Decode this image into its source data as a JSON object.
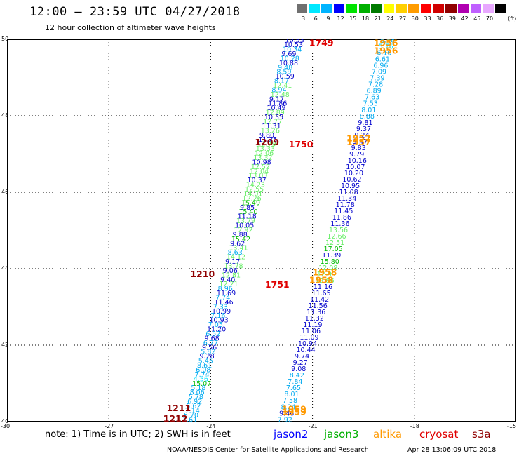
{
  "header": {
    "title": "12:00 – 23:59 UTC 04/27/2018",
    "subtitle": "12 hour collection of altimeter wave heights"
  },
  "color_scale": {
    "unit": "(ft)",
    "bins": [
      {
        "label": "3",
        "color": "#707070"
      },
      {
        "label": "6",
        "color": "#00e8ff"
      },
      {
        "label": "9",
        "color": "#00b4ff"
      },
      {
        "label": "12",
        "color": "#0000ff"
      },
      {
        "label": "15",
        "color": "#00e400"
      },
      {
        "label": "18",
        "color": "#00b000"
      },
      {
        "label": "21",
        "color": "#007a00"
      },
      {
        "label": "24",
        "color": "#ffff00"
      },
      {
        "label": "27",
        "color": "#ffd000"
      },
      {
        "label": "30",
        "color": "#ff9c00"
      },
      {
        "label": "33",
        "color": "#ff0000"
      },
      {
        "label": "36",
        "color": "#d00000"
      },
      {
        "label": "39",
        "color": "#900000"
      },
      {
        "label": "42",
        "color": "#b000b0"
      },
      {
        "label": "45",
        "color": "#c060ff"
      },
      {
        "label": "70",
        "color": "#e8a8ff"
      },
      {
        "label": "",
        "color": "#000000"
      }
    ]
  },
  "map": {
    "lat_labels": [
      "50",
      "48",
      "46",
      "44",
      "42",
      "40"
    ],
    "lon_labels": [
      "-30",
      "-27",
      "-24",
      "-21",
      "-18",
      "-15"
    ],
    "lon_range": [
      -30,
      -15
    ],
    "lat_range": [
      40,
      50
    ],
    "colors": {
      "c1": "#00e0ff",
      "c2": "#00aaf0",
      "c3": "#0000cc",
      "c4": "#66ee66",
      "c5": "#00bb00",
      "red": "#e00000",
      "dred": "#900000",
      "orange": "#ff9900"
    },
    "times": [
      {
        "text": "1749",
        "lon": -21.1,
        "lat": 49.9,
        "c": "red"
      },
      {
        "text": "1209",
        "lon": -22.7,
        "lat": 47.3,
        "c": "dred"
      },
      {
        "text": "1750",
        "lon": -21.7,
        "lat": 47.25,
        "c": "red"
      },
      {
        "text": "1210",
        "lon": -24.6,
        "lat": 43.85,
        "c": "dred"
      },
      {
        "text": "1751",
        "lon": -22.4,
        "lat": 43.58,
        "c": "red"
      },
      {
        "text": "1211",
        "lon": -25.3,
        "lat": 40.35,
        "c": "dred"
      },
      {
        "text": "1212",
        "lon": -25.4,
        "lat": 40.07,
        "c": "dred"
      },
      {
        "text": "1956",
        "lon": -19.2,
        "lat": 49.9,
        "c": "orange"
      },
      {
        "text": "1956",
        "lon": -19.2,
        "lat": 49.7,
        "c": "orange"
      },
      {
        "text": "1957",
        "lon": -20.0,
        "lat": 47.4,
        "c": "orange"
      },
      {
        "text": "1957",
        "lon": -20.0,
        "lat": 47.3,
        "c": "orange"
      },
      {
        "text": "1958",
        "lon": -21.0,
        "lat": 43.9,
        "c": "orange"
      },
      {
        "text": "1958",
        "lon": -21.1,
        "lat": 43.7,
        "c": "orange"
      },
      {
        "text": "1959",
        "lon": -21.9,
        "lat": 40.32,
        "c": "orange"
      },
      {
        "text": "1959",
        "lon": -21.9,
        "lat": 40.25,
        "c": "orange"
      }
    ],
    "tracks": [
      {
        "name": "cryosat-A",
        "start_lon": -21.6,
        "start_lat": 49.97,
        "lon_per_lat": 0.305,
        "points": [
          [
            "10.53",
            "c3"
          ],
          [
            "10.53",
            "c3"
          ],
          [
            "10.34",
            "c2"
          ],
          [
            "9.69",
            "c3"
          ],
          [
            "10.28",
            "c2"
          ],
          [
            "10.88",
            "c3"
          ],
          [
            "9.48",
            "c2"
          ],
          [
            "8.59",
            "c2"
          ],
          [
            "10.59",
            "c3"
          ],
          [
            "8.17",
            "c2"
          ],
          [
            "12.41",
            "c4"
          ],
          [
            "8.94",
            "c2"
          ],
          [
            "12.48",
            "c4"
          ],
          [
            "9.17",
            "c3"
          ],
          [
            "11.86",
            "c3"
          ],
          [
            "10.49",
            "c3"
          ],
          [
            "12.89",
            "c4"
          ],
          [
            "10.35",
            "c3"
          ],
          [
            "12.77",
            "c4"
          ],
          [
            "11.31",
            "c3"
          ],
          [
            "13.26",
            "c4"
          ],
          [
            "9.80",
            "c3"
          ],
          [
            "11.25",
            "c3"
          ],
          [
            "12.79",
            "c4"
          ],
          [
            "13.33",
            "c4"
          ],
          [
            "12.06",
            "c4"
          ],
          [
            "13.32",
            "c4"
          ],
          [
            "10.98",
            "c3"
          ],
          [
            "12.52",
            "c4"
          ],
          [
            "12.04",
            "c4"
          ],
          [
            "13.03",
            "c4"
          ],
          [
            "10.37",
            "c3"
          ],
          [
            "14.23",
            "c4"
          ],
          [
            "12.55",
            "c4"
          ],
          [
            "14.01",
            "c4"
          ],
          [
            "12.26",
            "c4"
          ],
          [
            "15.49",
            "c5"
          ],
          [
            "9.85",
            "c3"
          ],
          [
            "15.40",
            "c5"
          ],
          [
            "11.18",
            "c3"
          ],
          [
            "13.79",
            "c4"
          ],
          [
            "10.05",
            "c3"
          ],
          [
            "12.92",
            "c4"
          ],
          [
            "9.88",
            "c3"
          ],
          [
            "15.42",
            "c5"
          ],
          [
            "9.62",
            "c3"
          ],
          [
            "13.41",
            "c4"
          ],
          [
            "8.63",
            "c2"
          ],
          [
            "14.12",
            "c4"
          ],
          [
            "9.17",
            "c3"
          ],
          [
            "13.78",
            "c4"
          ],
          [
            "9.06",
            "c3"
          ],
          [
            "12.81",
            "c4"
          ],
          [
            "9.40",
            "c3"
          ],
          [
            "12.21",
            "c4"
          ],
          [
            "8.96",
            "c2"
          ],
          [
            "11.69",
            "c3"
          ],
          [
            "7.74",
            "c2"
          ],
          [
            "11.46",
            "c3"
          ],
          [
            "7.33",
            "c2"
          ],
          [
            "10.99",
            "c3"
          ],
          [
            "7.16",
            "c2"
          ],
          [
            "10.93",
            "c3"
          ],
          [
            "7.05",
            "c2"
          ],
          [
            "11.20",
            "c3"
          ],
          [
            "6.52",
            "c2"
          ],
          [
            "9.68",
            "c3"
          ],
          [
            "6.77",
            "c2"
          ],
          [
            "9.56",
            "c3"
          ],
          [
            "5.82",
            "c2"
          ],
          [
            "9.28",
            "c3"
          ],
          [
            "5.45",
            "c2"
          ],
          [
            "8.61",
            "c2"
          ],
          [
            "6.08",
            "c2"
          ],
          [
            "7.74",
            "c2"
          ],
          [
            "4.56",
            "c1"
          ],
          [
            "15.07",
            "c5"
          ],
          [
            "5.18",
            "c2"
          ],
          [
            "8.06",
            "c2"
          ],
          [
            "5.78",
            "c2"
          ],
          [
            "6.92",
            "c2"
          ],
          [
            "5.62",
            "c2"
          ],
          [
            "7.14",
            "c2"
          ],
          [
            "5.70",
            "c2"
          ],
          [
            "7.61",
            "c2"
          ]
        ]
      },
      {
        "name": "jason2-B",
        "start_lon": -18.8,
        "start_lat": 49.97,
        "lon_per_lat": 0.305,
        "points": [
          [
            "6.58",
            "c2"
          ],
          [
            "5.76",
            "c1"
          ],
          [
            "6.16",
            "c2"
          ],
          [
            "6.61",
            "c2"
          ],
          [
            "6.96",
            "c2"
          ],
          [
            "7.09",
            "c2"
          ],
          [
            "7.39",
            "c2"
          ],
          [
            "7.28",
            "c2"
          ],
          [
            "6.89",
            "c2"
          ],
          [
            "7.63",
            "c2"
          ],
          [
            "7.53",
            "c2"
          ],
          [
            "8.01",
            "c2"
          ],
          [
            "8.88",
            "c2"
          ],
          [
            "9.81",
            "c3"
          ],
          [
            "9.37",
            "c3"
          ],
          [
            "9.24",
            "c3"
          ],
          [
            "9.47",
            "c3"
          ],
          [
            "9.83",
            "c3"
          ],
          [
            "9.79",
            "c3"
          ],
          [
            "10.16",
            "c3"
          ],
          [
            "10.07",
            "c3"
          ],
          [
            "10.20",
            "c3"
          ],
          [
            "10.62",
            "c3"
          ],
          [
            "10.95",
            "c3"
          ],
          [
            "11.08",
            "c3"
          ],
          [
            "11.34",
            "c3"
          ],
          [
            "11.78",
            "c3"
          ],
          [
            "11.45",
            "c3"
          ],
          [
            "11.86",
            "c3"
          ],
          [
            "11.36",
            "c3"
          ],
          [
            "13.56",
            "c4"
          ],
          [
            "12.66",
            "c4"
          ],
          [
            "12.51",
            "c4"
          ],
          [
            "17.05",
            "c5"
          ],
          [
            "11.39",
            "c3"
          ],
          [
            "15.80",
            "c5"
          ],
          [
            "12.08",
            "c4"
          ],
          [
            "12.99",
            "c4"
          ],
          [
            "12.86",
            "c4"
          ],
          [
            "11.16",
            "c3"
          ],
          [
            "11.65",
            "c3"
          ],
          [
            "11.42",
            "c3"
          ],
          [
            "11.56",
            "c3"
          ],
          [
            "11.36",
            "c3"
          ],
          [
            "11.32",
            "c3"
          ],
          [
            "11.19",
            "c3"
          ],
          [
            "11.06",
            "c3"
          ],
          [
            "11.09",
            "c3"
          ],
          [
            "10.94",
            "c3"
          ],
          [
            "10.44",
            "c3"
          ],
          [
            "9.74",
            "c3"
          ],
          [
            "9.27",
            "c3"
          ],
          [
            "9.08",
            "c3"
          ],
          [
            "8.42",
            "c2"
          ],
          [
            "7.84",
            "c2"
          ],
          [
            "7.65",
            "c2"
          ],
          [
            "8.01",
            "c2"
          ],
          [
            "7.58",
            "c2"
          ],
          [
            "8.24",
            "c2"
          ],
          [
            "9.46",
            "c3"
          ],
          [
            "7.92",
            "c2"
          ]
        ]
      }
    ]
  },
  "footer": {
    "note": "note:  1) Time is in UTC;  2) SWH is in feet",
    "legend": [
      {
        "label": "jason2",
        "color": "#0000ff"
      },
      {
        "label": "jason3",
        "color": "#00b000"
      },
      {
        "label": "altika",
        "color": "#ff9900"
      },
      {
        "label": "cryosat",
        "color": "#e00000"
      },
      {
        "label": "s3a",
        "color": "#900000"
      }
    ],
    "credit": "NOAA/NESDIS Center for Satellite Applications and Research",
    "timestamp": "Apr 28 13:06:09 UTC 2018"
  }
}
